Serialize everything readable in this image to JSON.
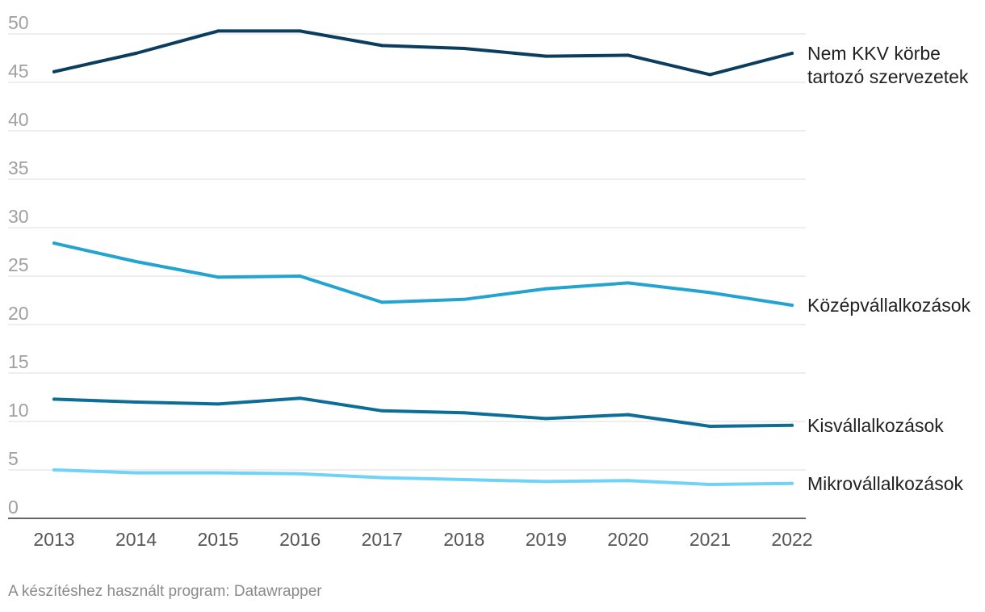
{
  "chart_data": {
    "type": "line",
    "x": [
      "2013",
      "2014",
      "2015",
      "2016",
      "2017",
      "2018",
      "2019",
      "2020",
      "2021",
      "2022"
    ],
    "ylim": [
      0,
      50
    ],
    "yticks": [
      "0",
      "5",
      "10",
      "15",
      "20",
      "25",
      "30",
      "35",
      "40",
      "45",
      "50"
    ],
    "grid": true,
    "series": [
      {
        "name": "Nem KKV körbe tartozó szervezetek",
        "label_lines": [
          "Nem KKV körbe",
          "tartozó szervezetek"
        ],
        "color": "#0b3d5e",
        "values": [
          46.1,
          48.0,
          50.3,
          50.3,
          48.8,
          48.5,
          47.7,
          47.8,
          45.8,
          48.0
        ]
      },
      {
        "name": "Középvállalkozások",
        "label_lines": [
          "Középvállalkozások"
        ],
        "color": "#22a3d0",
        "values": [
          28.4,
          26.5,
          24.9,
          25.0,
          22.3,
          22.6,
          23.7,
          24.3,
          23.3,
          22.0
        ]
      },
      {
        "name": "Kisvállalkozások",
        "label_lines": [
          "Kisvállalkozások"
        ],
        "color": "#0c6e96",
        "values": [
          12.3,
          12.0,
          11.8,
          12.4,
          11.1,
          10.9,
          10.3,
          10.7,
          9.5,
          9.6
        ]
      },
      {
        "name": "Mikrovállalkozások",
        "label_lines": [
          "Mikrovállalkozások"
        ],
        "color": "#6fd3f7",
        "values": [
          5.0,
          4.7,
          4.7,
          4.6,
          4.2,
          4.0,
          3.8,
          3.9,
          3.5,
          3.6
        ]
      }
    ]
  },
  "footer": {
    "source": "A készítéshez használt program: Datawrapper"
  }
}
